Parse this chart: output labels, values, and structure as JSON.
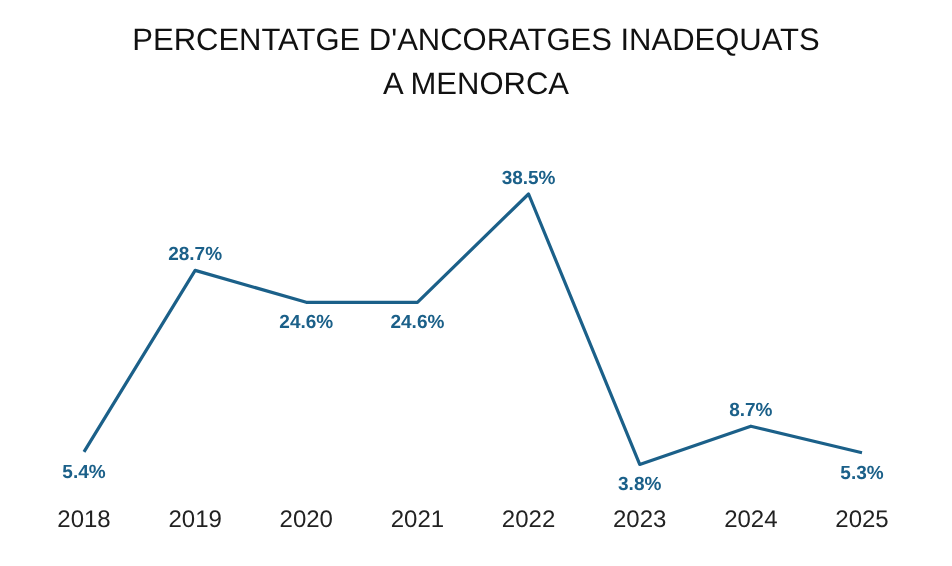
{
  "chart_data": {
    "type": "line",
    "title": "PERCENTATGE D'ANCORATGES INADEQUATS\nA MENORCA",
    "categories": [
      "2018",
      "2019",
      "2020",
      "2021",
      "2022",
      "2023",
      "2024",
      "2025"
    ],
    "series": [
      {
        "color": "#1b6089",
        "values": [
          5.4,
          28.7,
          24.6,
          24.6,
          38.5,
          3.8,
          8.7,
          5.3
        ],
        "value_labels": [
          "5.4%",
          "28.7%",
          "24.6%",
          "24.6%",
          "38.5%",
          "3.8%",
          "8.7%",
          "5.3%"
        ]
      }
    ]
  }
}
